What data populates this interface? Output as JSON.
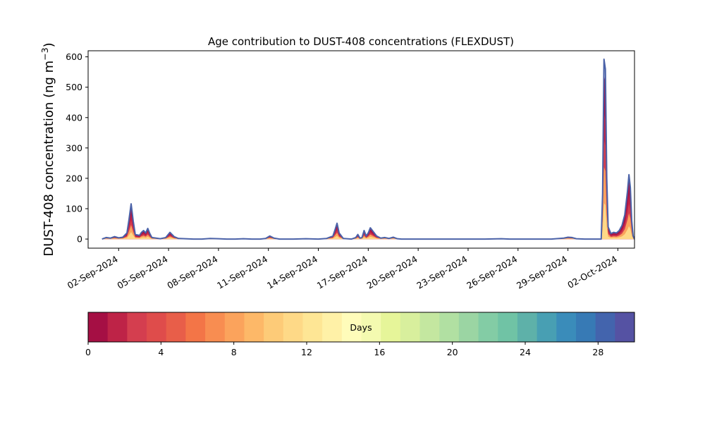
{
  "chart_data": {
    "type": "area",
    "title": "Age contribution to DUST-408 concentrations (FLEXDUST)",
    "ylabel": "DUST-408 concentration (ng m",
    "ylabel_sup": "−3",
    "ylabel_close": ")",
    "xlim": [
      "2024-08-31T04:00",
      "2024-10-03T00:00"
    ],
    "ylim": [
      -30,
      620
    ],
    "xticks": [
      "02-Sep-2024",
      "05-Sep-2024",
      "08-Sep-2024",
      "11-Sep-2024",
      "14-Sep-2024",
      "17-Sep-2024",
      "20-Sep-2024",
      "23-Sep-2024",
      "26-Sep-2024",
      "29-Sep-2024",
      "02-Oct-2024"
    ],
    "yticks": [
      0,
      100,
      200,
      300,
      400,
      500,
      600
    ],
    "legend": "none",
    "grid": false,
    "line_color": "#4b62a8",
    "series": [
      {
        "points": [
          [
            "2024-09-01T00:00",
            0
          ],
          [
            "2024-09-01T06:00",
            5
          ],
          [
            "2024-09-01T12:00",
            3
          ],
          [
            "2024-09-01T18:00",
            8
          ],
          [
            "2024-09-02T00:00",
            4
          ],
          [
            "2024-09-02T06:00",
            6
          ],
          [
            "2024-09-02T12:00",
            20
          ],
          [
            "2024-09-02T15:00",
            65
          ],
          [
            "2024-09-02T18:00",
            116
          ],
          [
            "2024-09-02T21:00",
            60
          ],
          [
            "2024-09-03T00:00",
            15
          ],
          [
            "2024-09-03T06:00",
            12
          ],
          [
            "2024-09-03T09:00",
            22
          ],
          [
            "2024-09-03T12:00",
            28
          ],
          [
            "2024-09-03T15:00",
            20
          ],
          [
            "2024-09-03T18:00",
            35
          ],
          [
            "2024-09-03T21:00",
            18
          ],
          [
            "2024-09-04T00:00",
            5
          ],
          [
            "2024-09-04T12:00",
            1
          ],
          [
            "2024-09-04T20:00",
            5
          ],
          [
            "2024-09-05T02:00",
            22
          ],
          [
            "2024-09-05T08:00",
            8
          ],
          [
            "2024-09-05T14:00",
            2
          ],
          [
            "2024-09-06T00:00",
            1
          ],
          [
            "2024-09-06T12:00",
            0
          ],
          [
            "2024-09-07T00:00",
            0
          ],
          [
            "2024-09-07T12:00",
            2
          ],
          [
            "2024-09-08T00:00",
            1
          ],
          [
            "2024-09-08T12:00",
            0
          ],
          [
            "2024-09-09T00:00",
            0
          ],
          [
            "2024-09-09T12:00",
            1
          ],
          [
            "2024-09-10T00:00",
            0
          ],
          [
            "2024-09-10T12:00",
            0
          ],
          [
            "2024-09-10T20:00",
            2
          ],
          [
            "2024-09-11T02:00",
            10
          ],
          [
            "2024-09-11T08:00",
            3
          ],
          [
            "2024-09-11T16:00",
            0
          ],
          [
            "2024-09-12T12:00",
            0
          ],
          [
            "2024-09-13T06:00",
            1
          ],
          [
            "2024-09-14T00:00",
            0
          ],
          [
            "2024-09-14T12:00",
            2
          ],
          [
            "2024-09-14T21:00",
            10
          ],
          [
            "2024-09-15T00:00",
            30
          ],
          [
            "2024-09-15T03:00",
            52
          ],
          [
            "2024-09-15T06:00",
            20
          ],
          [
            "2024-09-15T12:00",
            2
          ],
          [
            "2024-09-16T00:00",
            0
          ],
          [
            "2024-09-16T06:00",
            5
          ],
          [
            "2024-09-16T09:00",
            15
          ],
          [
            "2024-09-16T12:00",
            3
          ],
          [
            "2024-09-16T15:00",
            5
          ],
          [
            "2024-09-16T18:00",
            28
          ],
          [
            "2024-09-16T21:00",
            10
          ],
          [
            "2024-09-17T00:00",
            20
          ],
          [
            "2024-09-17T03:00",
            37
          ],
          [
            "2024-09-17T06:00",
            28
          ],
          [
            "2024-09-17T12:00",
            10
          ],
          [
            "2024-09-17T18:00",
            3
          ],
          [
            "2024-09-18T00:00",
            5
          ],
          [
            "2024-09-18T06:00",
            2
          ],
          [
            "2024-09-18T12:00",
            6
          ],
          [
            "2024-09-18T18:00",
            1
          ],
          [
            "2024-09-19T00:00",
            0
          ],
          [
            "2024-09-20T00:00",
            0
          ],
          [
            "2024-09-21T00:00",
            0
          ],
          [
            "2024-09-22T00:00",
            0
          ],
          [
            "2024-09-23T00:00",
            0
          ],
          [
            "2024-09-24T00:00",
            0
          ],
          [
            "2024-09-25T00:00",
            1
          ],
          [
            "2024-09-25T12:00",
            0
          ],
          [
            "2024-09-26T00:00",
            0
          ],
          [
            "2024-09-27T00:00",
            0
          ],
          [
            "2024-09-28T00:00",
            0
          ],
          [
            "2024-09-28T18:00",
            3
          ],
          [
            "2024-09-29T00:00",
            6
          ],
          [
            "2024-09-29T06:00",
            5
          ],
          [
            "2024-09-29T12:00",
            1
          ],
          [
            "2024-09-30T00:00",
            0
          ],
          [
            "2024-09-30T18:00",
            0
          ],
          [
            "2024-10-01T00:00",
            0
          ],
          [
            "2024-10-01T02:00",
            150
          ],
          [
            "2024-10-01T04:00",
            592
          ],
          [
            "2024-10-01T06:00",
            560
          ],
          [
            "2024-10-01T08:00",
            200
          ],
          [
            "2024-10-01T10:00",
            40
          ],
          [
            "2024-10-01T14:00",
            18
          ],
          [
            "2024-10-01T18:00",
            22
          ],
          [
            "2024-10-01T22:00",
            20
          ],
          [
            "2024-10-02T02:00",
            28
          ],
          [
            "2024-10-02T06:00",
            45
          ],
          [
            "2024-10-02T10:00",
            80
          ],
          [
            "2024-10-02T14:00",
            160
          ],
          [
            "2024-10-02T16:00",
            212
          ],
          [
            "2024-10-02T18:00",
            170
          ],
          [
            "2024-10-02T20:00",
            60
          ],
          [
            "2024-10-02T22:00",
            10
          ],
          [
            "2024-10-03T00:00",
            0
          ],
          [
            "2024-10-03T06:00",
            22
          ],
          [
            "2024-10-03T10:00",
            5
          ],
          [
            "2024-10-03T18:00",
            0
          ],
          [
            "2024-10-04T12:00",
            0
          ]
        ]
      }
    ],
    "colorbar": {
      "label": "Days",
      "min": 0,
      "max": 30,
      "ticks": [
        0,
        4,
        8,
        12,
        16,
        20,
        24,
        28
      ],
      "colors": [
        "#a50f44",
        "#be2347",
        "#d43e4f",
        "#df4c4b",
        "#e85e49",
        "#f37547",
        "#f88d51",
        "#fba35c",
        "#fdb868",
        "#fdcb78",
        "#fed987",
        "#fee695",
        "#fff1a7",
        "#fffcba",
        "#f4fab0",
        "#e6f599",
        "#d8ef9d",
        "#c4e7a0",
        "#b1e0a2",
        "#9bd5a3",
        "#83cca5",
        "#70c3a5",
        "#5eb1a9",
        "#489fb3",
        "#3a8cba",
        "#377ab5",
        "#4364ad",
        "#5552a3"
      ]
    }
  }
}
